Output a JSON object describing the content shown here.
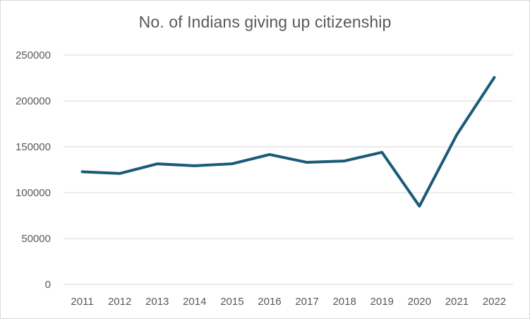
{
  "chart_data": {
    "type": "line",
    "title": "No. of Indians giving up citizenship",
    "xlabel": "",
    "ylabel": "",
    "categories": [
      "2011",
      "2012",
      "2013",
      "2014",
      "2015",
      "2016",
      "2017",
      "2018",
      "2019",
      "2020",
      "2021",
      "2022"
    ],
    "series": [
      {
        "values": [
          122819,
          120923,
          131405,
          129328,
          131489,
          141603,
          133049,
          134561,
          144017,
          85256,
          163370,
          225620
        ],
        "color": "#1a5b7a"
      }
    ],
    "y_ticks": [
      "0",
      "50000",
      "100000",
      "150000",
      "200000",
      "250000"
    ],
    "ylim": [
      0,
      250000
    ],
    "grid": true,
    "legend": "none"
  }
}
